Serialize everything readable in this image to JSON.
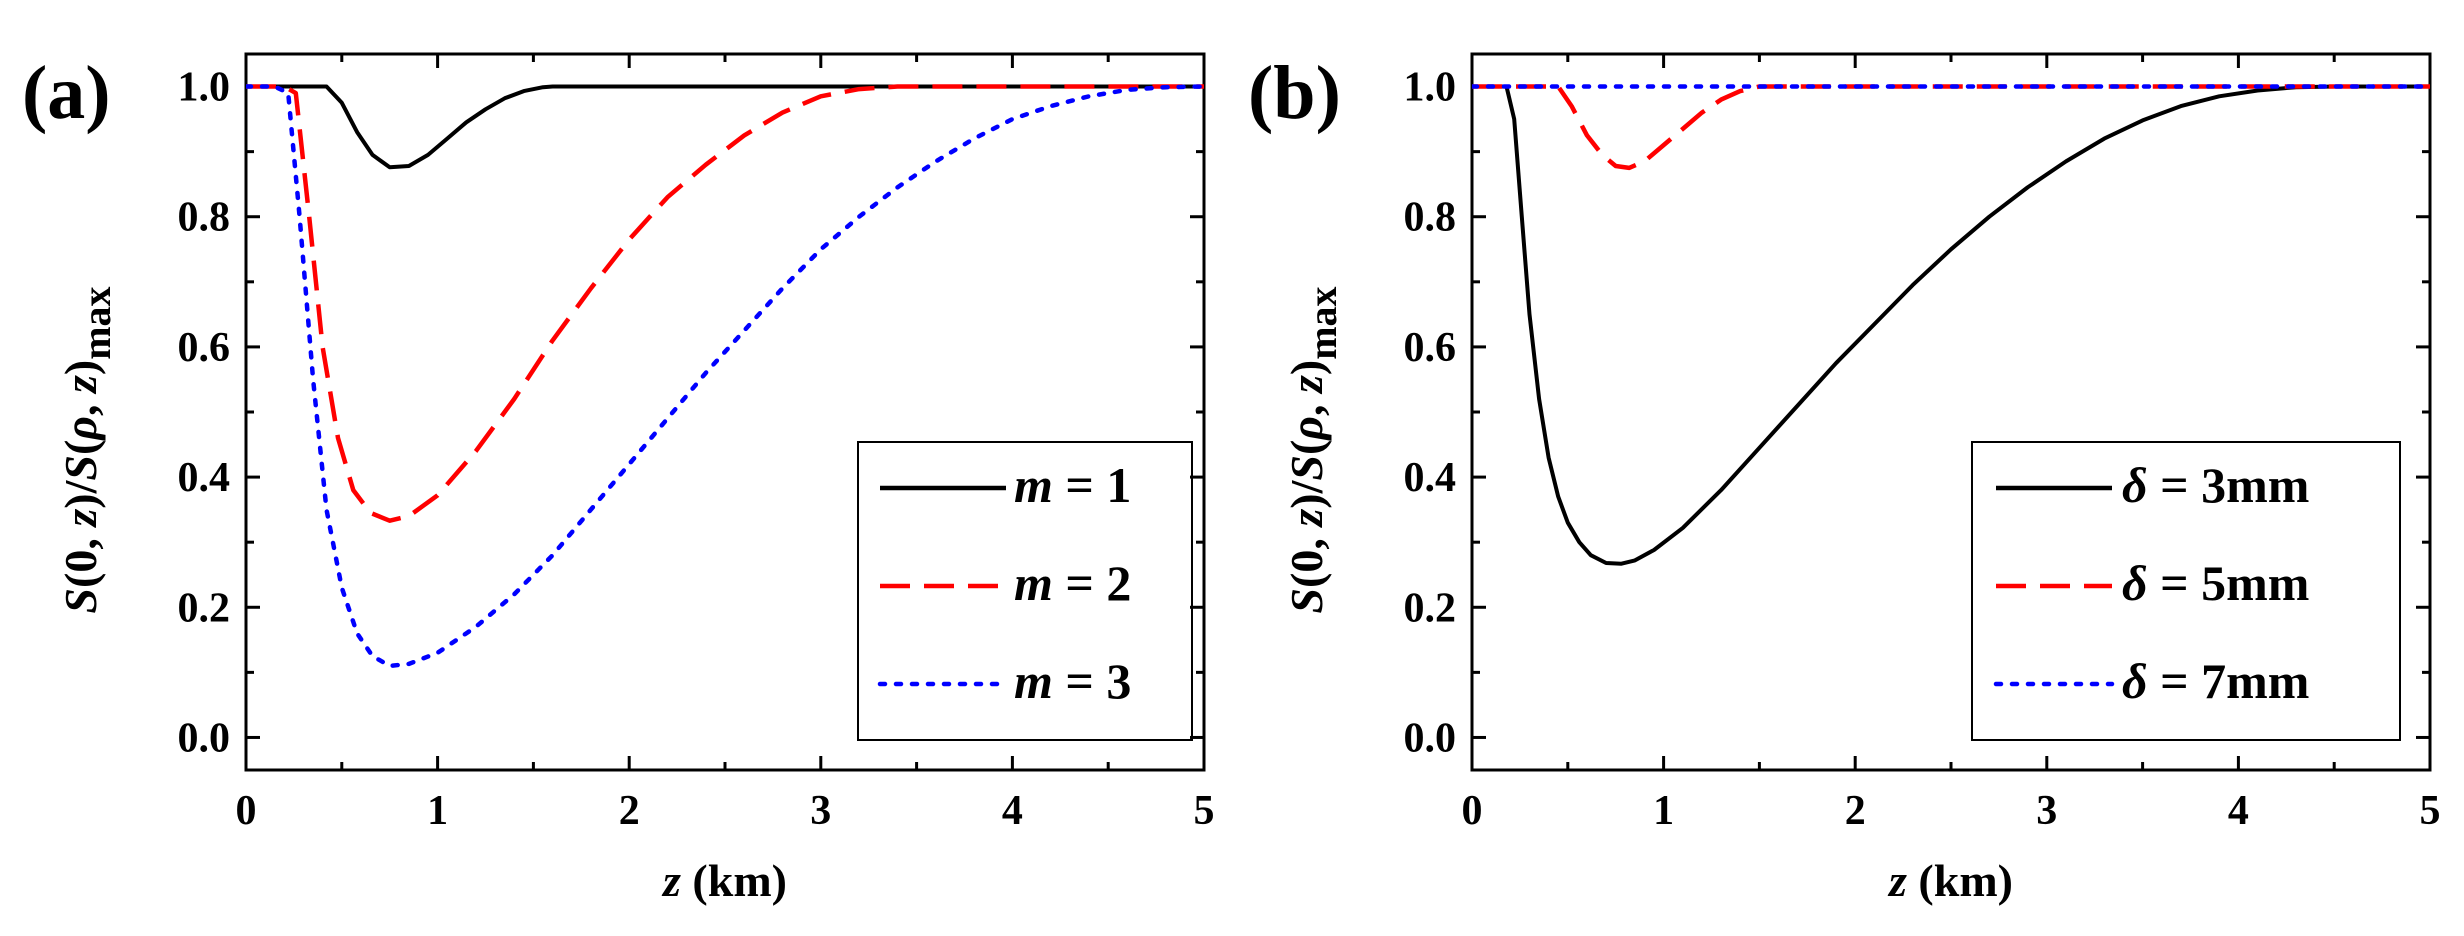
{
  "chart_data": [
    {
      "type": "line",
      "panel_label": "(a)",
      "xlabel": "z (km)",
      "xlabel_var": "z",
      "xlabel_unit": " (km)",
      "ylabel": "S(0, z)/S(ρ, z)max",
      "xlim": [
        0,
        5
      ],
      "ylim": [
        -0.05,
        1.05
      ],
      "xticks": [
        "0",
        "1",
        "2",
        "3",
        "4",
        "5"
      ],
      "yticks": [
        "0.0",
        "0.2",
        "0.4",
        "0.6",
        "0.8",
        "1.0"
      ],
      "legend_position": "lower-right",
      "series": [
        {
          "name": "m = 1",
          "var": "m",
          "value_text": " = 1",
          "color": "#000000",
          "dash": "solid",
          "x": [
            0,
            0.3,
            0.42,
            0.5,
            0.58,
            0.66,
            0.75,
            0.85,
            0.95,
            1.05,
            1.15,
            1.25,
            1.35,
            1.45,
            1.55,
            1.6,
            5.0
          ],
          "y": [
            1,
            1,
            1,
            0.975,
            0.93,
            0.895,
            0.876,
            0.878,
            0.895,
            0.92,
            0.945,
            0.965,
            0.982,
            0.993,
            0.999,
            1,
            1
          ]
        },
        {
          "name": "m = 2",
          "var": "m",
          "value_text": " = 2",
          "color": "#ff0000",
          "dash": "dashed",
          "x": [
            0,
            0.2,
            0.26,
            0.33,
            0.4,
            0.48,
            0.56,
            0.65,
            0.75,
            0.85,
            1.0,
            1.2,
            1.4,
            1.6,
            1.8,
            2.0,
            2.2,
            2.4,
            2.6,
            2.8,
            3.0,
            3.2,
            3.4,
            5.0
          ],
          "y": [
            1,
            1,
            0.99,
            0.8,
            0.6,
            0.46,
            0.38,
            0.345,
            0.333,
            0.34,
            0.372,
            0.44,
            0.52,
            0.61,
            0.69,
            0.765,
            0.83,
            0.88,
            0.925,
            0.96,
            0.985,
            0.996,
            1,
            1
          ]
        },
        {
          "name": "m = 3",
          "var": "m",
          "value_text": " = 3",
          "color": "#0000ff",
          "dash": "dotted",
          "x": [
            0,
            0.15,
            0.22,
            0.28,
            0.35,
            0.42,
            0.5,
            0.58,
            0.66,
            0.75,
            0.85,
            1.0,
            1.2,
            1.4,
            1.6,
            1.8,
            2.0,
            2.2,
            2.4,
            2.6,
            2.8,
            3.0,
            3.2,
            3.4,
            3.6,
            3.8,
            4.0,
            4.2,
            4.4,
            4.6,
            4.8,
            5.0
          ],
          "y": [
            1,
            1,
            0.99,
            0.8,
            0.55,
            0.35,
            0.23,
            0.16,
            0.125,
            0.11,
            0.113,
            0.13,
            0.17,
            0.22,
            0.28,
            0.35,
            0.42,
            0.49,
            0.56,
            0.625,
            0.69,
            0.75,
            0.8,
            0.845,
            0.885,
            0.92,
            0.95,
            0.97,
            0.985,
            0.995,
            0.999,
            1
          ]
        }
      ]
    },
    {
      "type": "line",
      "panel_label": "(b)",
      "xlabel": "z (km)",
      "xlabel_var": "z",
      "xlabel_unit": " (km)",
      "ylabel": "S(0, z)/S(ρ, z)max",
      "xlim": [
        0,
        5
      ],
      "ylim": [
        -0.05,
        1.05
      ],
      "xticks": [
        "0",
        "1",
        "2",
        "3",
        "4",
        "5"
      ],
      "yticks": [
        "0.0",
        "0.2",
        "0.4",
        "0.6",
        "0.8",
        "1.0"
      ],
      "legend_position": "lower-right",
      "series": [
        {
          "name": "δ = 3mm",
          "var": "δ",
          "value_text": " = 3mm",
          "color": "#000000",
          "dash": "solid",
          "x": [
            0,
            0.18,
            0.22,
            0.26,
            0.3,
            0.35,
            0.4,
            0.45,
            0.5,
            0.56,
            0.62,
            0.7,
            0.78,
            0.85,
            0.95,
            1.1,
            1.3,
            1.5,
            1.7,
            1.9,
            2.1,
            2.3,
            2.5,
            2.7,
            2.9,
            3.1,
            3.3,
            3.5,
            3.7,
            3.9,
            4.1,
            4.3,
            4.5,
            5.0
          ],
          "y": [
            1,
            1,
            0.95,
            0.8,
            0.65,
            0.52,
            0.43,
            0.37,
            0.33,
            0.3,
            0.28,
            0.268,
            0.267,
            0.272,
            0.288,
            0.322,
            0.38,
            0.445,
            0.51,
            0.575,
            0.635,
            0.695,
            0.75,
            0.8,
            0.845,
            0.885,
            0.92,
            0.948,
            0.97,
            0.985,
            0.994,
            0.999,
            1,
            1
          ]
        },
        {
          "name": "δ = 5mm",
          "var": "δ",
          "value_text": " = 5mm",
          "color": "#ff0000",
          "dash": "dashed",
          "x": [
            0,
            0.45,
            0.52,
            0.6,
            0.68,
            0.75,
            0.82,
            0.9,
            1.0,
            1.1,
            1.2,
            1.3,
            1.4,
            1.5,
            5.0
          ],
          "y": [
            1,
            1,
            0.97,
            0.925,
            0.895,
            0.878,
            0.875,
            0.885,
            0.91,
            0.935,
            0.96,
            0.98,
            0.993,
            1,
            1
          ]
        },
        {
          "name": "δ = 7mm",
          "var": "δ",
          "value_text": " = 7mm",
          "color": "#0000ff",
          "dash": "dotted",
          "x": [
            0,
            5.0
          ],
          "y": [
            1,
            1
          ]
        }
      ]
    }
  ]
}
